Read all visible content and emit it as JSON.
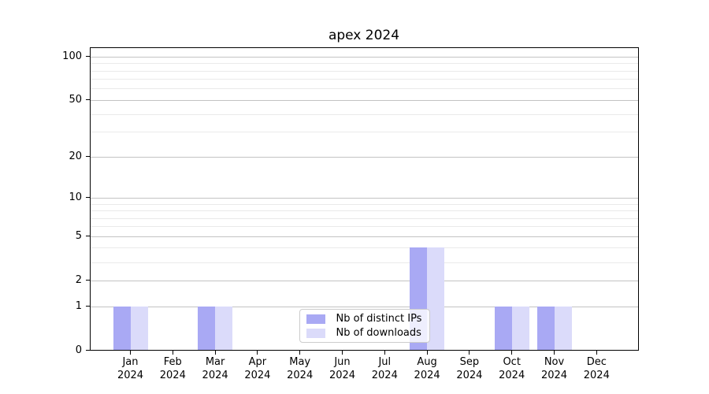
{
  "chart_data": {
    "type": "bar",
    "title": "apex 2024",
    "categories": [
      "Jan",
      "Feb",
      "Mar",
      "Apr",
      "May",
      "Jun",
      "Jul",
      "Aug",
      "Sep",
      "Oct",
      "Nov",
      "Dec"
    ],
    "category_year": "2024",
    "series": [
      {
        "name": "Nb of distinct IPs",
        "color": "#a9a9f4",
        "values": [
          1,
          0,
          1,
          0,
          0,
          0,
          0,
          4,
          0,
          1,
          1,
          0
        ]
      },
      {
        "name": "Nb of downloads",
        "color": "#dbdbfa",
        "values": [
          1,
          0,
          1,
          0,
          0,
          0,
          0,
          4,
          0,
          1,
          1,
          0
        ]
      }
    ],
    "yscale": "log1p",
    "ylim": [
      0,
      117
    ],
    "yticks": [
      0,
      1,
      2,
      5,
      10,
      20,
      50,
      100
    ],
    "minor_gridlines": [
      3,
      4,
      6,
      7,
      8,
      9,
      30,
      40,
      60,
      70,
      80,
      90
    ],
    "grid": true,
    "legend_position": "lower center",
    "colors": {
      "major_grid": "#c3c3c3",
      "minor_grid": "#eaeaea",
      "spine": "#000000",
      "legend_bg": "rgba(255,255,255,0.8)",
      "legend_border": "#cccccc",
      "text": "#000000"
    }
  }
}
